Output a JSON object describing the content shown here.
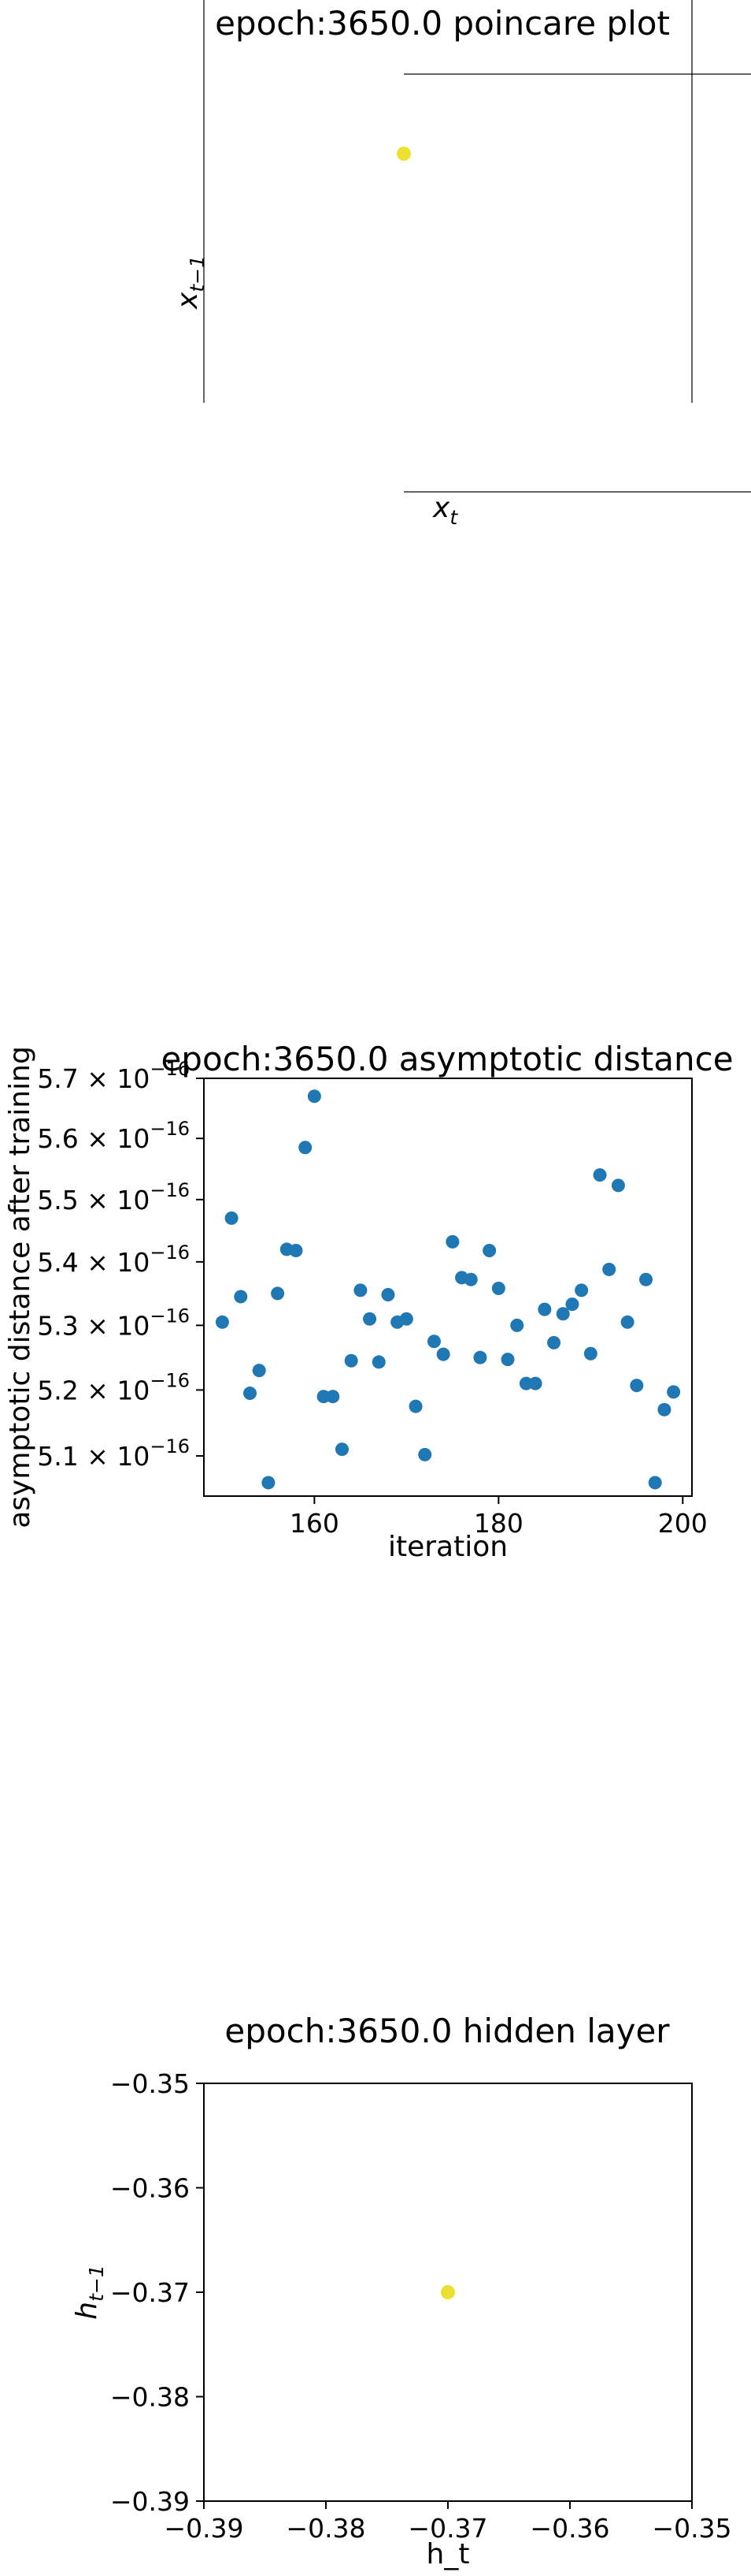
{
  "chart_data": [
    {
      "type": "scatter",
      "title": "epoch:3650.0 poincare plot",
      "xlabel": "x_t",
      "ylabel": "x_{t-1}",
      "points": [
        {
          "x": 0,
          "y": 0
        }
      ],
      "point_color": "#ece133"
    },
    {
      "type": "scatter",
      "title": "epoch:3650.0 asymptotic distance",
      "xlabel": "iteration",
      "ylabel": "asymptotic distance after training",
      "xlim": [
        148,
        201
      ],
      "ylim": [
        5.04e-16,
        5.7e-16
      ],
      "y_scale": "log",
      "xticks": [
        160,
        180,
        200
      ],
      "yticks": [
        {
          "value": 5.1e-16,
          "label": "5.1 × 10^−16"
        },
        {
          "value": 5.2e-16,
          "label": "5.2 × 10^−16"
        },
        {
          "value": 5.3e-16,
          "label": "5.3 × 10^−16"
        },
        {
          "value": 5.4e-16,
          "label": "5.4 × 10^−16"
        },
        {
          "value": 5.5e-16,
          "label": "5.5 × 10^−16"
        },
        {
          "value": 5.6e-16,
          "label": "5.6 × 10^−16"
        },
        {
          "value": 5.7e-16,
          "label": "5.7 × 10^−16"
        }
      ],
      "x": [
        150,
        151,
        152,
        153,
        154,
        155,
        156,
        157,
        158,
        159,
        160,
        161,
        162,
        163,
        164,
        165,
        166,
        167,
        168,
        169,
        170,
        171,
        172,
        173,
        174,
        175,
        176,
        177,
        178,
        179,
        180,
        181,
        182,
        183,
        184,
        185,
        186,
        187,
        188,
        189,
        190,
        191,
        192,
        193,
        194,
        195,
        196,
        197,
        198,
        199
      ],
      "y": [
        5.305e-16,
        5.47e-16,
        5.345e-16,
        5.195e-16,
        5.23e-16,
        5.06e-16,
        5.35e-16,
        5.42e-16,
        5.418e-16,
        5.585e-16,
        5.67e-16,
        5.19e-16,
        5.19e-16,
        5.11e-16,
        5.245e-16,
        5.355e-16,
        5.31e-16,
        5.243e-16,
        5.348e-16,
        5.305e-16,
        5.31e-16,
        5.175e-16,
        5.102e-16,
        5.275e-16,
        5.255e-16,
        5.432e-16,
        5.375e-16,
        5.372e-16,
        5.25e-16,
        5.418e-16,
        5.358e-16,
        5.247e-16,
        5.3e-16,
        5.21e-16,
        5.21e-16,
        5.325e-16,
        5.273e-16,
        5.318e-16,
        5.333e-16,
        5.355e-16,
        5.256e-16,
        5.54e-16,
        5.388e-16,
        5.523e-16,
        5.305e-16,
        5.207e-16,
        5.372e-16,
        5.06e-16,
        5.17e-16,
        5.197e-16
      ],
      "point_color": "#1f77b4"
    },
    {
      "type": "scatter",
      "title": "epoch:3650.0 hidden layer",
      "xlabel": "h_t",
      "ylabel": "h_{t-1}",
      "xlim": [
        -0.39,
        -0.35
      ],
      "ylim": [
        -0.39,
        -0.35
      ],
      "xticks": [
        {
          "value": -0.39,
          "label": "−0.39"
        },
        {
          "value": -0.38,
          "label": "−0.38"
        },
        {
          "value": -0.37,
          "label": "−0.37"
        },
        {
          "value": -0.36,
          "label": "−0.36"
        },
        {
          "value": -0.35,
          "label": "−0.35"
        }
      ],
      "yticks": [
        {
          "value": -0.35,
          "label": "−0.35"
        },
        {
          "value": -0.36,
          "label": "−0.36"
        },
        {
          "value": -0.37,
          "label": "−0.37"
        },
        {
          "value": -0.38,
          "label": "−0.38"
        },
        {
          "value": -0.39,
          "label": "−0.39"
        }
      ],
      "points": [
        {
          "x": -0.37,
          "y": -0.37
        }
      ],
      "point_color": "#ece133"
    }
  ]
}
